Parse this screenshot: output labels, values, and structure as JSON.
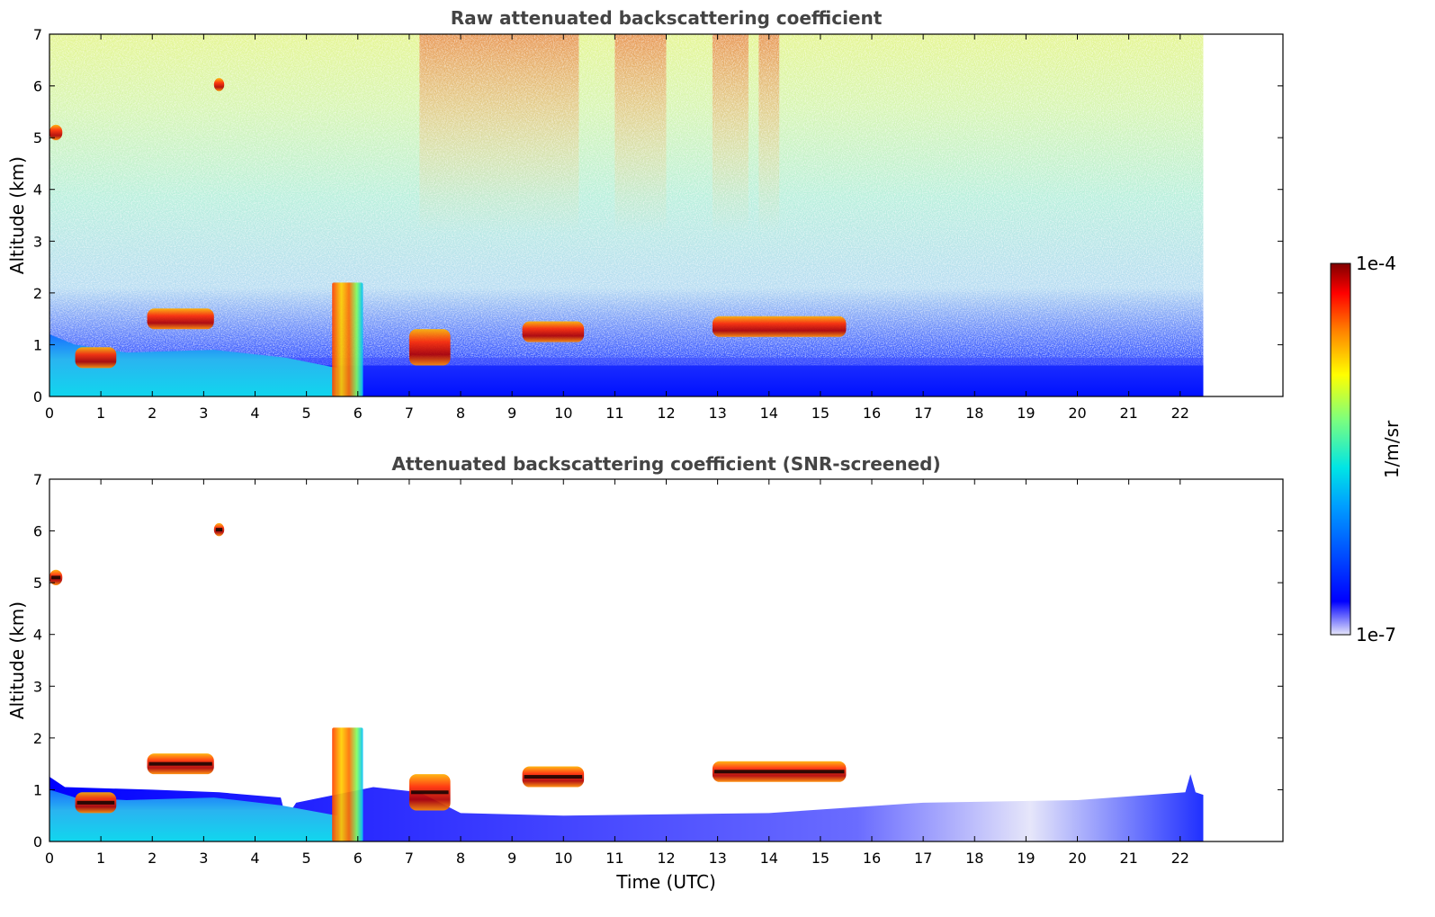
{
  "chart_data": [
    {
      "type": "heatmap",
      "title": "Raw attenuated backscattering coefficient",
      "xlabel": "",
      "ylabel": "Altitude (km)",
      "xlim": [
        0,
        24
      ],
      "ylim": [
        0,
        7
      ],
      "xticks": [
        "0",
        "1",
        "2",
        "3",
        "4",
        "5",
        "6",
        "7",
        "8",
        "9",
        "10",
        "11",
        "12",
        "13",
        "14",
        "15",
        "16",
        "17",
        "18",
        "19",
        "20",
        "21",
        "22"
      ],
      "yticks": [
        "0",
        "1",
        "2",
        "3",
        "4",
        "5",
        "6",
        "7"
      ],
      "data_extent_hours": 22.45,
      "features": [
        {
          "kind": "noise",
          "description_level": "increases with altitude",
          "x": [
            0,
            22.45
          ],
          "y": [
            0,
            7
          ]
        },
        {
          "kind": "boundary_layer",
          "x": [
            0,
            22.45
          ],
          "y": [
            0,
            0.6
          ]
        },
        {
          "kind": "cloud",
          "x": [
            0.5,
            1.3
          ],
          "y": [
            0.55,
            0.95
          ]
        },
        {
          "kind": "cloud",
          "x": [
            1.9,
            3.2
          ],
          "y": [
            1.3,
            1.7
          ]
        },
        {
          "kind": "cloud",
          "x": [
            5.5,
            6.1
          ],
          "y": [
            0,
            2.2
          ]
        },
        {
          "kind": "cloud",
          "x": [
            7.0,
            7.8
          ],
          "y": [
            0.6,
            1.3
          ]
        },
        {
          "kind": "cloud",
          "x": [
            9.2,
            10.4
          ],
          "y": [
            1.05,
            1.45
          ]
        },
        {
          "kind": "cloud",
          "x": [
            12.9,
            15.5
          ],
          "y": [
            1.15,
            1.55
          ]
        },
        {
          "kind": "cloud",
          "x": [
            0,
            0.25
          ],
          "y": [
            4.95,
            5.25
          ]
        },
        {
          "kind": "cloud",
          "x": [
            3.2,
            3.4
          ],
          "y": [
            5.9,
            6.15
          ]
        }
      ]
    },
    {
      "type": "heatmap",
      "title": "Attenuated backscattering coefficient (SNR-screened)",
      "xlabel": "Time (UTC)",
      "ylabel": "Altitude (km)",
      "xlim": [
        0,
        24
      ],
      "ylim": [
        0,
        7
      ],
      "xticks": [
        "0",
        "1",
        "2",
        "3",
        "4",
        "5",
        "6",
        "7",
        "8",
        "9",
        "10",
        "11",
        "12",
        "13",
        "14",
        "15",
        "16",
        "17",
        "18",
        "19",
        "20",
        "21",
        "22"
      ],
      "yticks": [
        "0",
        "1",
        "2",
        "3",
        "4",
        "5",
        "6",
        "7"
      ],
      "data_extent_hours": 22.45,
      "features": [
        {
          "kind": "boundary_layer",
          "x": [
            0,
            22.45
          ],
          "y": [
            0,
            1.0
          ]
        },
        {
          "kind": "cloud",
          "x": [
            0.5,
            1.3
          ],
          "y": [
            0.55,
            0.95
          ]
        },
        {
          "kind": "cloud",
          "x": [
            1.9,
            3.2
          ],
          "y": [
            1.3,
            1.7
          ]
        },
        {
          "kind": "cloud",
          "x": [
            5.5,
            6.1
          ],
          "y": [
            0,
            2.2
          ]
        },
        {
          "kind": "cloud",
          "x": [
            7.0,
            7.8
          ],
          "y": [
            0.6,
            1.3
          ]
        },
        {
          "kind": "cloud",
          "x": [
            9.2,
            10.4
          ],
          "y": [
            1.05,
            1.45
          ]
        },
        {
          "kind": "cloud",
          "x": [
            12.9,
            15.5
          ],
          "y": [
            1.15,
            1.55
          ]
        },
        {
          "kind": "cloud",
          "x": [
            0,
            0.25
          ],
          "y": [
            4.95,
            5.25
          ]
        },
        {
          "kind": "cloud",
          "x": [
            3.2,
            3.4
          ],
          "y": [
            5.9,
            6.15
          ]
        }
      ]
    }
  ],
  "colorbar": {
    "min_label": "1e-7",
    "max_label": "1e-4",
    "unit_label": "1/m/sr",
    "scale": "log",
    "colors": [
      "#e6e6fa",
      "#0000ff",
      "#00a0ff",
      "#00e5e5",
      "#7dff7d",
      "#ffff00",
      "#ff8000",
      "#ff0000",
      "#800000"
    ]
  }
}
